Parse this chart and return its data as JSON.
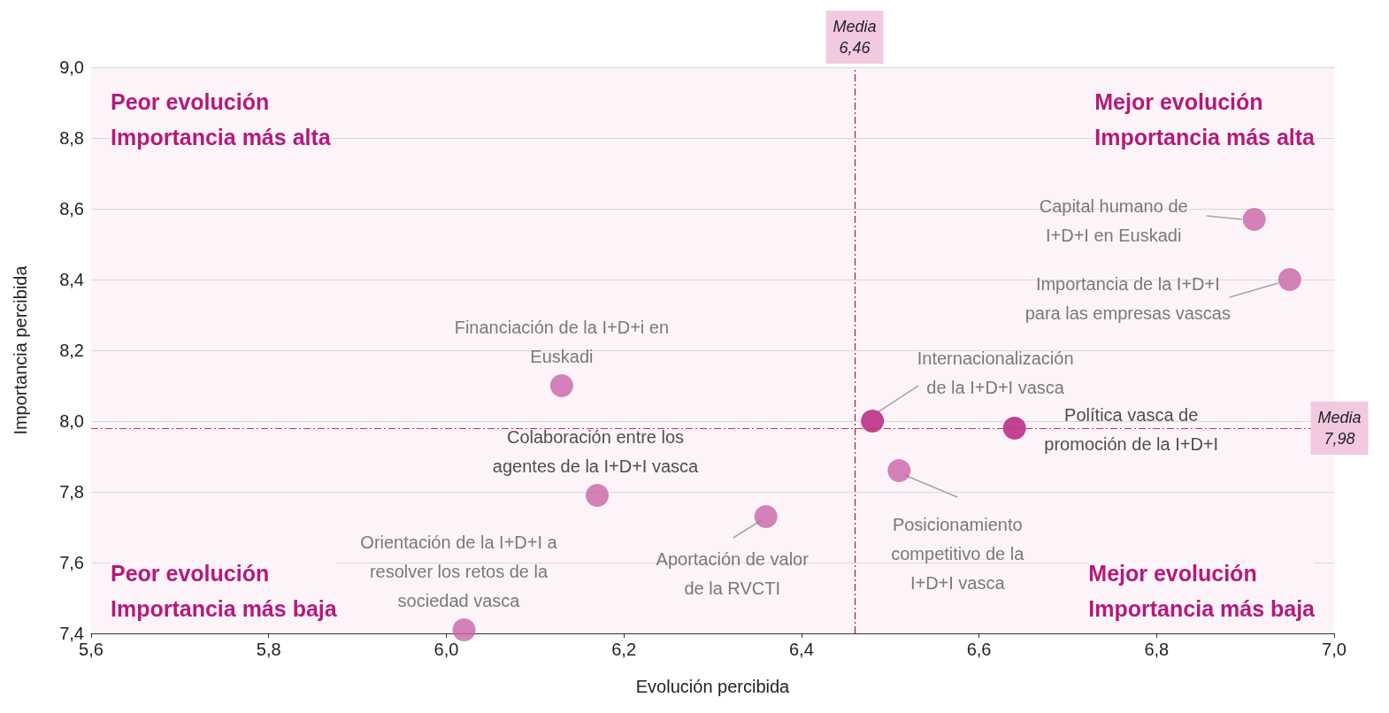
{
  "chart_data": {
    "type": "scatter",
    "xlabel": "Evolución percibida",
    "ylabel": "Importancia percibida",
    "x": [
      6.91,
      6.95,
      6.13,
      6.48,
      6.64,
      6.51,
      6.17,
      6.36,
      6.02
    ],
    "values": [
      8.57,
      8.4,
      8.1,
      8.0,
      7.98,
      7.86,
      7.79,
      7.73,
      7.41
    ],
    "value_labels": [
      "Capital humano de\nI+D+I en Euskadi",
      "Importancia de la I+D+I\npara las empresas vascas",
      "Financiación de la I+D+i en\nEuskadi",
      "Internacionalización\nde la I+D+I vasca",
      "Política vasca de\npromoción de la I+D+I",
      "Posicionamiento\ncompetitivo de la\nI+D+I vasca",
      "Colaboración entre los\nagentes de la I+D+I vasca",
      "Aportación de valor\nde la RVCTI",
      "Orientación de la I+D+I a\nresolver los retos de la\nsociedad vasca"
    ],
    "colors": [
      "#c864a8",
      "#c864a8",
      "#c864a8",
      "#b0177c",
      "#b0177c",
      "#c864a8",
      "#c864a8",
      "#c864a8",
      "#c864a8"
    ],
    "marker": "circle",
    "xlim": [
      5.6,
      7.0
    ],
    "ylim": [
      7.4,
      9.0
    ],
    "xticks": [
      {
        "value": 5.6,
        "label": "5,6"
      },
      {
        "value": 5.8,
        "label": "5,8"
      },
      {
        "value": 6.0,
        "label": "6,0"
      },
      {
        "value": 6.2,
        "label": "6,2"
      },
      {
        "value": 6.4,
        "label": "6,4"
      },
      {
        "value": 6.6,
        "label": "6,6"
      },
      {
        "value": 6.8,
        "label": "6,8"
      },
      {
        "value": 7.0,
        "label": "7,0"
      }
    ],
    "yticks": [
      {
        "value": 7.4,
        "label": "7,4"
      },
      {
        "value": 7.6,
        "label": "7,6"
      },
      {
        "value": 7.8,
        "label": "7,8"
      },
      {
        "value": 8.0,
        "label": "8,0"
      },
      {
        "value": 8.2,
        "label": "8,2"
      },
      {
        "value": 8.4,
        "label": "8,4"
      },
      {
        "value": 8.6,
        "label": "8,6"
      },
      {
        "value": 8.8,
        "label": "8,8"
      },
      {
        "value": 9.0,
        "label": "9,0"
      }
    ],
    "grid": "y",
    "ref_lines": [
      {
        "axis": "x",
        "value": 6.46,
        "label": "Media\n6,46",
        "color": "#a0282d",
        "line_style": "dashed"
      },
      {
        "axis": "y",
        "value": 7.98,
        "label": "Media\n7,98",
        "color": "#e0303a",
        "line_style": "dashed"
      }
    ],
    "annotations": [
      "Peor evolución\nImportancia más alta",
      "Mejor evolución\nImportancia más alta",
      "Peor evolución\nImportancia más baja",
      "Mejor evolución\nImportancia más baja"
    ]
  }
}
